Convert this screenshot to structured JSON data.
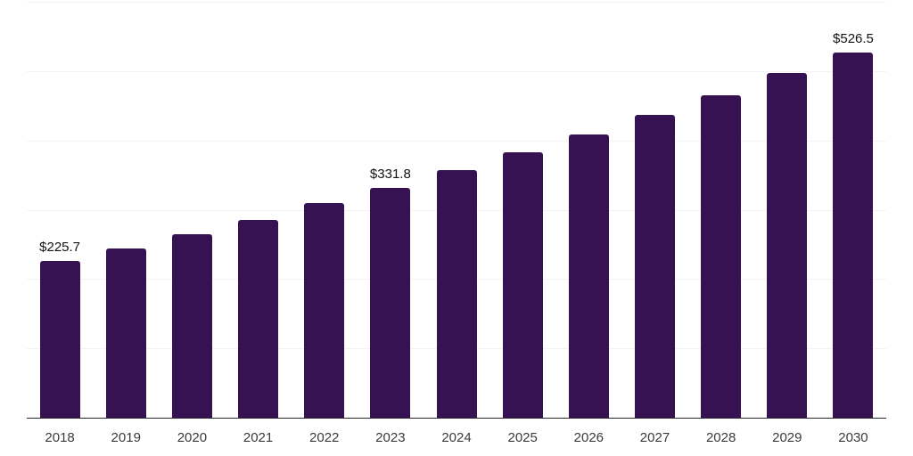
{
  "chart_data": {
    "type": "bar",
    "title": "",
    "xlabel": "",
    "ylabel": "",
    "categories": [
      "2018",
      "2019",
      "2020",
      "2021",
      "2022",
      "2023",
      "2024",
      "2025",
      "2026",
      "2027",
      "2028",
      "2029",
      "2030"
    ],
    "values": [
      225.7,
      244.6,
      264.8,
      285.4,
      309.9,
      331.8,
      356.6,
      383.0,
      408.5,
      437.4,
      465.7,
      496.6,
      526.5
    ],
    "value_prefix": "$",
    "point_labels": {
      "2018": "$225.7",
      "2023": "$331.8",
      "2030": "$526.5"
    },
    "ylim": [
      0,
      600
    ],
    "gridline_step": 100,
    "grid": "horizontal",
    "legend": "none",
    "colors": {
      "bar": "#371253",
      "gridline": "#f2f2f4",
      "axis_line": "#26262b",
      "value_label_text": "#111111",
      "axis_label_text": "#3a3a3a",
      "background": "#ffffff"
    }
  }
}
